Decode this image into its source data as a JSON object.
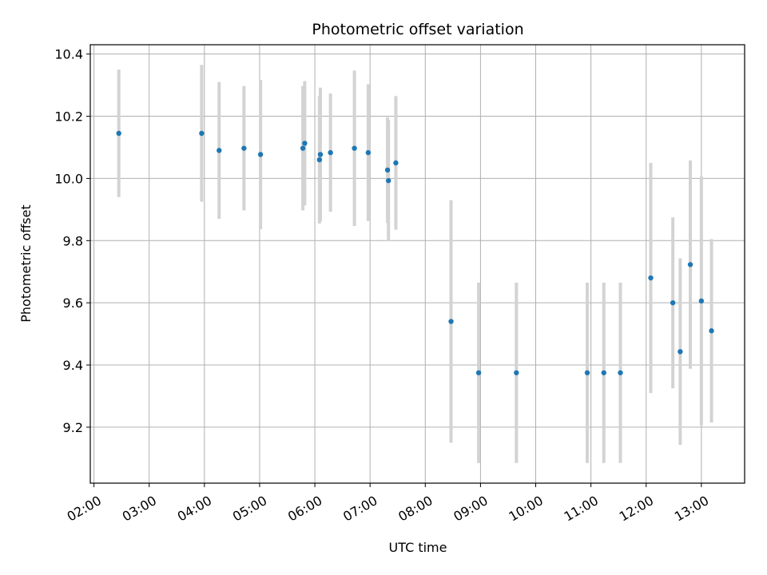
{
  "chart_data": {
    "type": "scatter",
    "title": "Photometric offset variation",
    "xlabel": "UTC time",
    "ylabel": "Photometric offset",
    "xlim": [
      "01:56",
      "13:47"
    ],
    "ylim": [
      9.02,
      10.43
    ],
    "grid": true,
    "x_ticks": [
      "02:00",
      "03:00",
      "04:00",
      "05:00",
      "06:00",
      "07:00",
      "08:00",
      "09:00",
      "10:00",
      "11:00",
      "12:00",
      "13:00"
    ],
    "y_ticks": [
      "9.2",
      "9.4",
      "9.6",
      "9.8",
      "10.0",
      "10.2",
      "10.4"
    ],
    "colors": {
      "point": "#1f77b4",
      "errorbar": "#d3d3d3",
      "grid": "#b0b0b0"
    },
    "series": [
      {
        "points": [
          {
            "x": "02:27",
            "y": 10.145,
            "err": 0.205
          },
          {
            "x": "03:57",
            "y": 10.145,
            "err": 0.22
          },
          {
            "x": "04:16",
            "y": 10.09,
            "err": 0.22
          },
          {
            "x": "04:43",
            "y": 10.097,
            "err": 0.2
          },
          {
            "x": "05:01",
            "y": 10.077,
            "err": 0.24
          },
          {
            "x": "05:47",
            "y": 10.097,
            "err": 0.2
          },
          {
            "x": "05:49",
            "y": 10.113,
            "err": 0.2
          },
          {
            "x": "06:05",
            "y": 10.06,
            "err": 0.205
          },
          {
            "x": "06:06",
            "y": 10.077,
            "err": 0.215
          },
          {
            "x": "06:17",
            "y": 10.083,
            "err": 0.19
          },
          {
            "x": "06:43",
            "y": 10.097,
            "err": 0.25
          },
          {
            "x": "06:58",
            "y": 10.083,
            "err": 0.22
          },
          {
            "x": "07:19",
            "y": 10.027,
            "err": 0.17
          },
          {
            "x": "07:20",
            "y": 9.993,
            "err": 0.195
          },
          {
            "x": "07:28",
            "y": 10.05,
            "err": 0.215
          },
          {
            "x": "08:28",
            "y": 9.54,
            "err": 0.39
          },
          {
            "x": "08:58",
            "y": 9.375,
            "err": 0.29
          },
          {
            "x": "09:39",
            "y": 9.375,
            "err": 0.29
          },
          {
            "x": "10:56",
            "y": 9.375,
            "err": 0.29
          },
          {
            "x": "11:14",
            "y": 9.375,
            "err": 0.29
          },
          {
            "x": "11:32",
            "y": 9.375,
            "err": 0.29
          },
          {
            "x": "12:05",
            "y": 9.68,
            "err": 0.37
          },
          {
            "x": "12:29",
            "y": 9.6,
            "err": 0.275
          },
          {
            "x": "12:37",
            "y": 9.443,
            "err": 0.3
          },
          {
            "x": "12:48",
            "y": 9.723,
            "err": 0.335
          },
          {
            "x": "13:00",
            "y": 9.606,
            "err": 0.4
          },
          {
            "x": "13:11",
            "y": 9.51,
            "err": 0.295
          }
        ]
      }
    ]
  }
}
